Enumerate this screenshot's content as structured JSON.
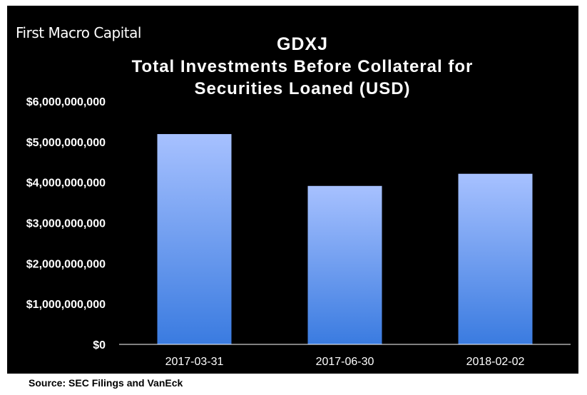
{
  "brand": "First Macro Capital",
  "source_note": "Source: SEC Filings and VanEck",
  "colors": {
    "background": "#000000",
    "bar_top": "#a7c1ff",
    "bar_bottom": "#3a7be0",
    "text": "#ffffff"
  },
  "chart_data": {
    "type": "bar",
    "title": "GDXJ",
    "subtitle_lines": [
      "Total Investments Before Collateral for",
      "Securities Loaned (USD)"
    ],
    "categories": [
      "2017-03-31",
      "2017-06-30",
      "2018-02-02"
    ],
    "values": [
      5190000000,
      3910000000,
      4210000000
    ],
    "ylim": [
      0,
      6000000000
    ],
    "y_ticks": [
      0,
      1000000000,
      2000000000,
      3000000000,
      4000000000,
      5000000000,
      6000000000
    ],
    "y_tick_labels": [
      "$0",
      "$1,000,000,000",
      "$2,000,000,000",
      "$3,000,000,000",
      "$4,000,000,000",
      "$5,000,000,000",
      "$6,000,000,000"
    ],
    "grid": false,
    "legend": "none"
  }
}
